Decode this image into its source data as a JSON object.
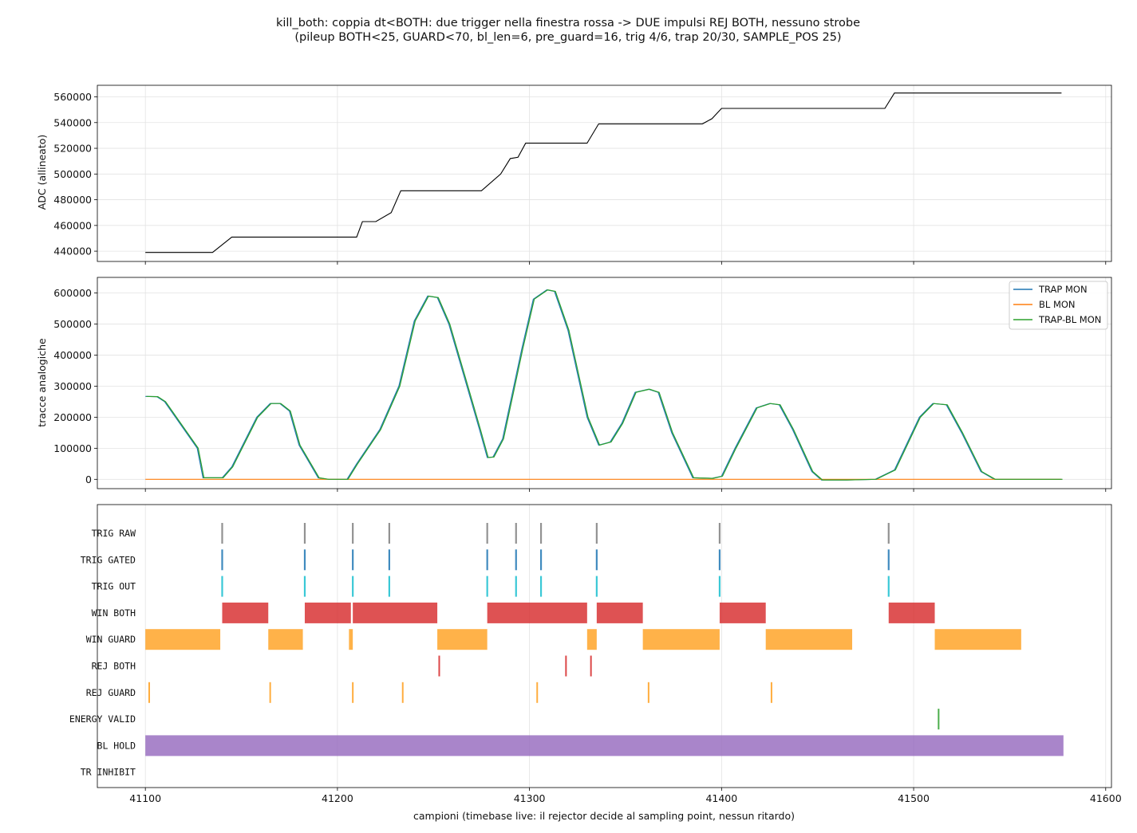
{
  "title_line1": "kill_both: coppia dt<BOTH: due trigger nella finestra rossa -> DUE impulsi REJ BOTH, nessuno strobe",
  "title_line2": "(pileup BOTH<25, GUARD<70, bl_len=6, pre_guard=16, trig 4/6, trap 20/30, SAMPLE_POS 25)",
  "chart_data": [
    {
      "type": "line",
      "ylabel": "ADC (allineato)",
      "xlim": [
        41075,
        41603
      ],
      "ylim": [
        432000,
        569000
      ],
      "grid": true,
      "yticks": [
        440000,
        460000,
        480000,
        500000,
        520000,
        540000,
        560000
      ],
      "series": [
        {
          "color": "#000000",
          "points": [
            [
              41100,
              439000
            ],
            [
              41135,
              439000
            ],
            [
              41145,
              451000
            ],
            [
              41210,
              451000
            ],
            [
              41213,
              463000
            ],
            [
              41220,
              463000
            ],
            [
              41228,
              470000
            ],
            [
              41233,
              487000
            ],
            [
              41275,
              487000
            ],
            [
              41285,
              500000
            ],
            [
              41290,
              512000
            ],
            [
              41294,
              513000
            ],
            [
              41298,
              524000
            ],
            [
              41330,
              524000
            ],
            [
              41336,
              539000
            ],
            [
              41390,
              539000
            ],
            [
              41395,
              543000
            ],
            [
              41400,
              551000
            ],
            [
              41485,
              551000
            ],
            [
              41490,
              563000
            ],
            [
              41577,
              563000
            ]
          ]
        }
      ]
    },
    {
      "type": "line",
      "ylabel": "tracce analogiche",
      "xlim": [
        41075,
        41603
      ],
      "ylim": [
        -30000,
        650000
      ],
      "grid": true,
      "legend": "top-right",
      "yticks": [
        0,
        100000,
        200000,
        300000,
        400000,
        500000,
        600000
      ],
      "series": [
        {
          "name": "TRAP MON",
          "color": "#1f77b4",
          "points": [
            [
              41100,
              267000
            ],
            [
              41106,
              266000
            ],
            [
              41110,
              250000
            ],
            [
              41127,
              100000
            ],
            [
              41130,
              5000
            ],
            [
              41140,
              5000
            ],
            [
              41145,
              40000
            ],
            [
              41158,
              200000
            ],
            [
              41165,
              244000
            ],
            [
              41170,
              244000
            ],
            [
              41175,
              220000
            ],
            [
              41180,
              110000
            ],
            [
              41190,
              5000
            ],
            [
              41195,
              0
            ],
            [
              41205,
              0
            ],
            [
              41210,
              50000
            ],
            [
              41222,
              160000
            ],
            [
              41232,
              300000
            ],
            [
              41240,
              510000
            ],
            [
              41247,
              590000
            ],
            [
              41252,
              585000
            ],
            [
              41258,
              500000
            ],
            [
              41266,
              330000
            ],
            [
              41274,
              160000
            ],
            [
              41278,
              70000
            ],
            [
              41281,
              72000
            ],
            [
              41286,
              130000
            ],
            [
              41296,
              420000
            ],
            [
              41302,
              580000
            ],
            [
              41309,
              610000
            ],
            [
              41313,
              605000
            ],
            [
              41320,
              480000
            ],
            [
              41330,
              200000
            ],
            [
              41336,
              110000
            ],
            [
              41342,
              120000
            ],
            [
              41348,
              180000
            ],
            [
              41355,
              280000
            ],
            [
              41362,
              290000
            ],
            [
              41367,
              280000
            ],
            [
              41374,
              150000
            ],
            [
              41385,
              5000
            ],
            [
              41395,
              3000
            ],
            [
              41400,
              10000
            ],
            [
              41407,
              100000
            ],
            [
              41418,
              230000
            ],
            [
              41425,
              244000
            ],
            [
              41430,
              240000
            ],
            [
              41437,
              160000
            ],
            [
              41447,
              25000
            ],
            [
              41452,
              -2000
            ],
            [
              41465,
              -2000
            ],
            [
              41480,
              0
            ],
            [
              41490,
              30000
            ],
            [
              41503,
              200000
            ],
            [
              41510,
              244000
            ],
            [
              41517,
              240000
            ],
            [
              41525,
              150000
            ],
            [
              41535,
              25000
            ],
            [
              41542,
              0
            ],
            [
              41577,
              0
            ]
          ]
        },
        {
          "name": "BL MON",
          "color": "#ff7f0e",
          "points": [
            [
              41100,
              0
            ],
            [
              41577,
              0
            ]
          ]
        },
        {
          "name": "TRAP-BL MON",
          "color": "#2ca02c",
          "points": [
            [
              41100,
              267000
            ],
            [
              41106,
              266000
            ],
            [
              41110,
              250000
            ],
            [
              41127,
              100000
            ],
            [
              41130,
              5000
            ],
            [
              41140,
              5000
            ],
            [
              41145,
              40000
            ],
            [
              41158,
              200000
            ],
            [
              41165,
              244000
            ],
            [
              41170,
              244000
            ],
            [
              41175,
              220000
            ],
            [
              41180,
              110000
            ],
            [
              41190,
              5000
            ],
            [
              41195,
              0
            ],
            [
              41205,
              0
            ],
            [
              41210,
              50000
            ],
            [
              41222,
              160000
            ],
            [
              41232,
              300000
            ],
            [
              41240,
              510000
            ],
            [
              41247,
              590000
            ],
            [
              41252,
              585000
            ],
            [
              41258,
              500000
            ],
            [
              41266,
              330000
            ],
            [
              41274,
              160000
            ],
            [
              41278,
              70000
            ],
            [
              41281,
              72000
            ],
            [
              41286,
              130000
            ],
            [
              41296,
              420000
            ],
            [
              41302,
              580000
            ],
            [
              41309,
              610000
            ],
            [
              41313,
              605000
            ],
            [
              41320,
              480000
            ],
            [
              41330,
              200000
            ],
            [
              41336,
              110000
            ],
            [
              41342,
              120000
            ],
            [
              41348,
              180000
            ],
            [
              41355,
              280000
            ],
            [
              41362,
              290000
            ],
            [
              41367,
              280000
            ],
            [
              41374,
              150000
            ],
            [
              41385,
              5000
            ],
            [
              41395,
              3000
            ],
            [
              41400,
              10000
            ],
            [
              41407,
              100000
            ],
            [
              41418,
              230000
            ],
            [
              41425,
              244000
            ],
            [
              41430,
              240000
            ],
            [
              41437,
              160000
            ],
            [
              41447,
              25000
            ],
            [
              41452,
              -2000
            ],
            [
              41465,
              -2000
            ],
            [
              41480,
              0
            ],
            [
              41490,
              30000
            ],
            [
              41503,
              200000
            ],
            [
              41510,
              244000
            ],
            [
              41517,
              240000
            ],
            [
              41525,
              150000
            ],
            [
              41535,
              25000
            ],
            [
              41542,
              0
            ],
            [
              41577,
              0
            ]
          ]
        }
      ]
    },
    {
      "type": "timeline",
      "xlabel": "campioni (timebase live: il rejector decide al sampling point, nessun ritardo)",
      "xlim": [
        41075,
        41603
      ],
      "grid": true,
      "xticks": [
        41100,
        41200,
        41300,
        41400,
        41500,
        41600
      ],
      "rows": [
        {
          "label": "TRIG RAW",
          "color": "#7f7f7f",
          "kind": "tick",
          "x": [
            41140,
            41183,
            41208,
            41227,
            41278,
            41293,
            41306,
            41335,
            41399,
            41487
          ]
        },
        {
          "label": "TRIG GATED",
          "color": "#1f77b4",
          "kind": "tick",
          "x": [
            41140,
            41183,
            41208,
            41227,
            41278,
            41293,
            41306,
            41335,
            41399,
            41487
          ]
        },
        {
          "label": "TRIG OUT",
          "color": "#17becf",
          "kind": "tick",
          "x": [
            41140,
            41183,
            41208,
            41227,
            41278,
            41293,
            41306,
            41335,
            41399,
            41487
          ]
        },
        {
          "label": "WIN BOTH",
          "color": "#d62728",
          "kind": "bar",
          "spans": [
            [
              41140,
              41164
            ],
            [
              41183,
              41207
            ],
            [
              41208,
              41252
            ],
            [
              41278,
              41330
            ],
            [
              41335,
              41359
            ],
            [
              41399,
              41423
            ],
            [
              41487,
              41511
            ]
          ]
        },
        {
          "label": "WIN GUARD",
          "color": "#ff9f1c",
          "kind": "bar",
          "spans": [
            [
              41100,
              41139
            ],
            [
              41164,
              41182
            ],
            [
              41206,
              41208
            ],
            [
              41252,
              41278
            ],
            [
              41330,
              41335
            ],
            [
              41359,
              41399
            ],
            [
              41423,
              41468
            ],
            [
              41511,
              41556
            ]
          ]
        },
        {
          "label": "REJ BOTH",
          "color": "#d62728",
          "kind": "tick",
          "x": [
            41253,
            41319,
            41332
          ]
        },
        {
          "label": "REJ GUARD",
          "color": "#ff9f1c",
          "kind": "tick",
          "x": [
            41102,
            41165,
            41208,
            41234,
            41304,
            41362,
            41426
          ]
        },
        {
          "label": "ENERGY VALID",
          "color": "#2ca02c",
          "kind": "tick",
          "x": [
            41513
          ]
        },
        {
          "label": "BL HOLD",
          "color": "#9467bd",
          "kind": "bar",
          "spans": [
            [
              41100,
              41578
            ]
          ]
        },
        {
          "label": "TR INHIBIT",
          "color": "#8c564b",
          "kind": "bar",
          "spans": []
        }
      ]
    }
  ]
}
